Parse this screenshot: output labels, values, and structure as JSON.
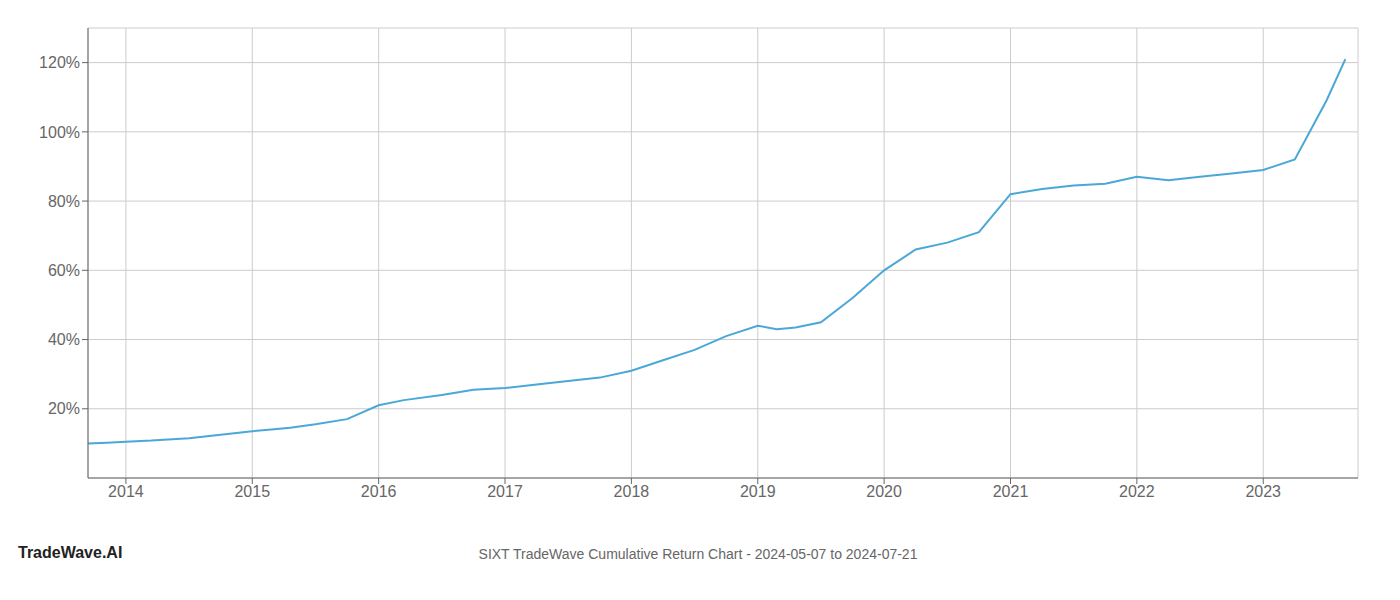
{
  "chart_data": {
    "type": "line",
    "title": "SIXT TradeWave Cumulative Return Chart - 2024-05-07 to 2024-07-21",
    "annotations": [
      "TradeWave.AI"
    ],
    "color": "#4aa8d8",
    "x": [
      2013.7,
      2013.85,
      2014.0,
      2014.2,
      2014.5,
      2014.75,
      2015.0,
      2015.15,
      2015.3,
      2015.5,
      2015.75,
      2016.0,
      2016.2,
      2016.5,
      2016.75,
      2017.0,
      2017.25,
      2017.5,
      2017.75,
      2018.0,
      2018.25,
      2018.5,
      2018.75,
      2019.0,
      2019.15,
      2019.3,
      2019.5,
      2019.75,
      2020.0,
      2020.25,
      2020.5,
      2020.75,
      2021.0,
      2021.25,
      2021.5,
      2021.75,
      2022.0,
      2022.25,
      2022.5,
      2022.75,
      2023.0,
      2023.25,
      2023.5,
      2023.65
    ],
    "values": [
      10,
      10.2,
      10.5,
      10.8,
      11.5,
      12.5,
      13.5,
      14,
      14.5,
      15.5,
      17,
      21,
      22.5,
      24,
      25.5,
      26,
      27,
      28,
      29,
      31,
      34,
      37,
      41,
      44,
      43,
      43.5,
      45,
      52,
      60,
      66,
      68,
      71,
      82,
      83.5,
      84.5,
      85,
      87,
      86,
      87,
      88,
      89,
      92,
      109,
      121
    ],
    "xlim": [
      2013.7,
      2023.75
    ],
    "xticks": [
      2014,
      2015,
      2016,
      2017,
      2018,
      2019,
      2020,
      2021,
      2022,
      2023
    ],
    "ylim": [
      0,
      130
    ],
    "yticks": [
      {
        "value": 20,
        "label": "20%"
      },
      {
        "value": 40,
        "label": "40%"
      },
      {
        "value": 60,
        "label": "60%"
      },
      {
        "value": 80,
        "label": "80%"
      },
      {
        "value": 100,
        "label": "100%"
      },
      {
        "value": 120,
        "label": "120%"
      }
    ],
    "grid": true
  }
}
